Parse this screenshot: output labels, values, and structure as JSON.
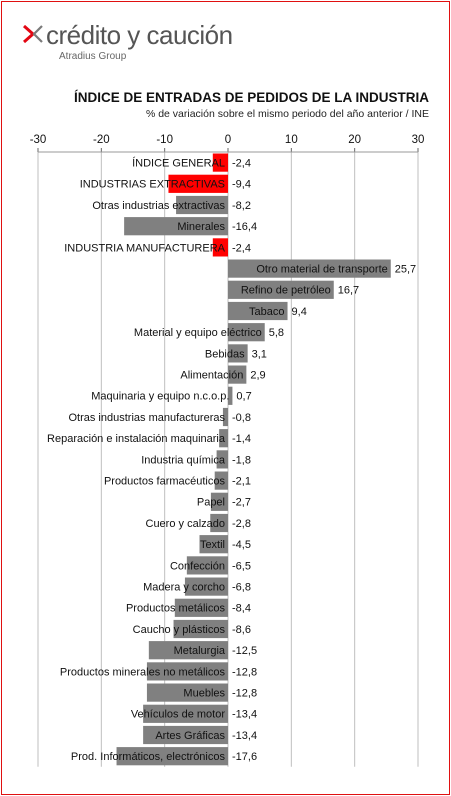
{
  "brand": {
    "name": "crédito y caución",
    "group": "Atradius Group"
  },
  "colors": {
    "highlight": "#ff0000",
    "bar": "#808080",
    "grid": "#bfbfbf"
  },
  "chart_data": {
    "type": "bar",
    "orientation": "horizontal",
    "title": "ÍNDICE DE ENTRADAS DE PEDIDOS DE LA INDUSTRIA",
    "subtitle": "% de variación sobre el mismo periodo del año anterior / INE",
    "xlim": [
      -30,
      30
    ],
    "xticks": [
      "-30",
      "-20",
      "-10",
      "0",
      "10",
      "20",
      "30"
    ],
    "grid": true,
    "categories": [
      "ÍNDICE GENERAL",
      "INDUSTRIAS EXTRACTIVAS",
      "Otras industrias  extractivas",
      "Minerales",
      "INDUSTRIA MANUFACTURERA",
      "Otro material de transporte",
      "Refino de petróleo",
      "Tabaco",
      "Material y equipo eléctrico",
      "Bebidas",
      "Alimentación",
      "Maquinaria  y equipo  n.c.o.p.",
      "Otras industrias  manufactureras",
      "Reparación e instalación  maquinaria",
      "Industria química",
      "Productos farmacéuticos",
      "Papel",
      "Cuero y calzado",
      "Textil",
      "Confección",
      "Madera y corcho",
      "Productos metálicos",
      "Caucho y plásticos",
      "Metalurgia",
      "Productos minerales no metálicos",
      "Muebles",
      "Vehículos de motor",
      "Artes Gráficas",
      "Prod. Informáticos, electrónicos"
    ],
    "values": [
      -2.4,
      -9.4,
      -8.2,
      -16.4,
      -2.4,
      25.7,
      16.7,
      9.4,
      5.8,
      3.1,
      2.9,
      0.7,
      -0.8,
      -1.4,
      -1.8,
      -2.1,
      -2.7,
      -2.8,
      -4.5,
      -6.5,
      -6.8,
      -8.4,
      -8.6,
      -12.5,
      -12.8,
      -12.8,
      -13.4,
      -13.4,
      -17.6
    ],
    "value_labels": [
      "-2,4",
      "-9,4",
      "-8,2",
      "-16,4",
      "-2,4",
      "25,7",
      "16,7",
      "9,4",
      "5,8",
      "3,1",
      "2,9",
      "0,7",
      "-0,8",
      "-1,4",
      "-1,8",
      "-2,1",
      "-2,7",
      "-2,8",
      "-4,5",
      "-6,5",
      "-6,8",
      "-8,4",
      "-8,6",
      "-12,5",
      "-12,8",
      "-12,8",
      "-13,4",
      "-13,4",
      "-17,6"
    ],
    "highlighted": [
      "ÍNDICE GENERAL",
      "INDUSTRIAS EXTRACTIVAS",
      "INDUSTRIA MANUFACTURERA"
    ]
  }
}
